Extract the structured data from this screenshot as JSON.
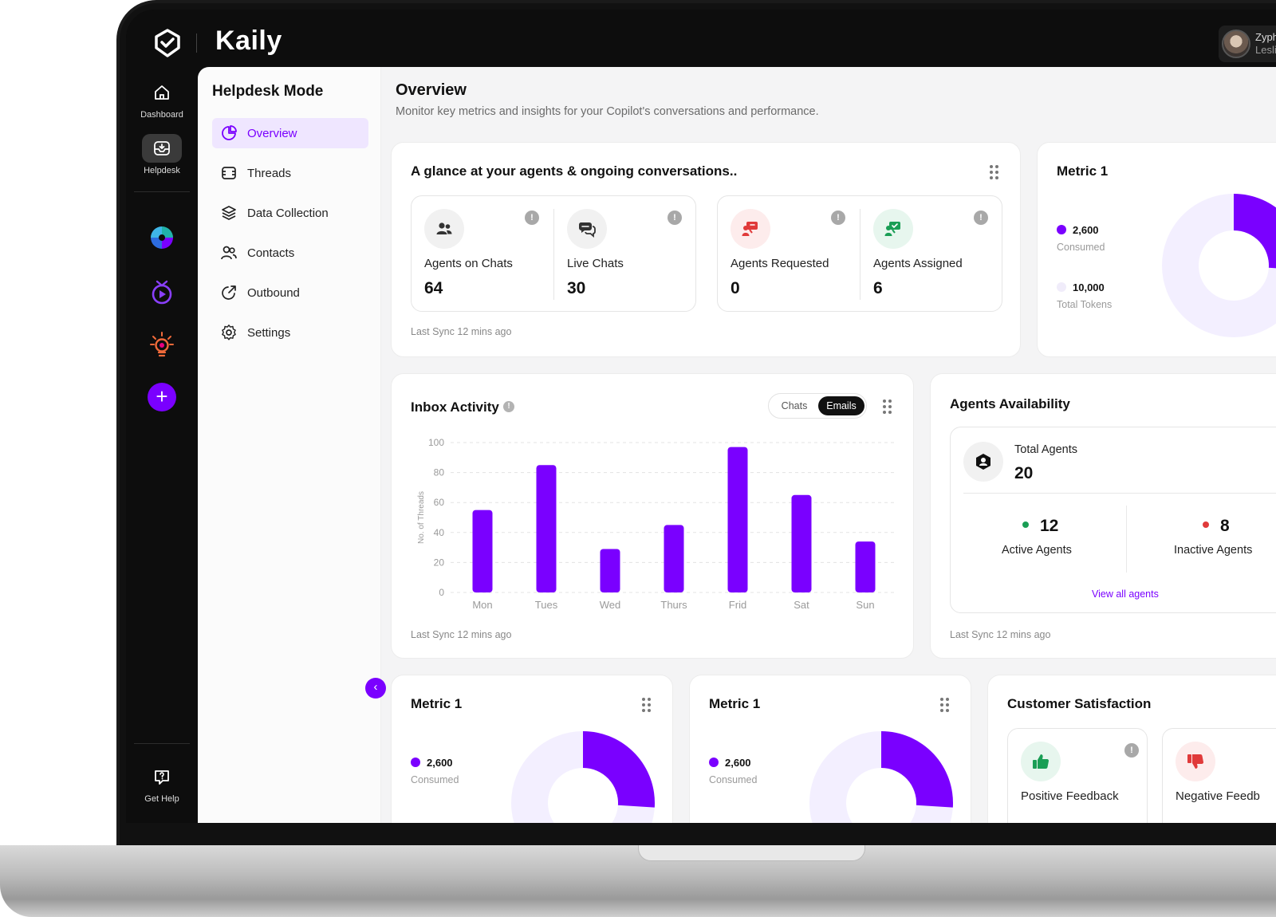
{
  "app": {
    "name": "Kaily",
    "user_name": "Zyphe",
    "user_sub": "Leslie"
  },
  "rail": {
    "dashboard": "Dashboard",
    "helpdesk": "Helpdesk",
    "get_help": "Get Help"
  },
  "sidenav": {
    "title": "Helpdesk Mode",
    "items": [
      {
        "label": "Overview",
        "icon": "pie-chart-icon"
      },
      {
        "label": "Threads",
        "icon": "threads-icon"
      },
      {
        "label": "Data Collection",
        "icon": "layers-icon"
      },
      {
        "label": "Contacts",
        "icon": "contacts-icon"
      },
      {
        "label": "Outbound",
        "icon": "outbound-icon"
      },
      {
        "label": "Settings",
        "icon": "gear-icon"
      }
    ]
  },
  "page": {
    "title": "Overview",
    "subtitle": "Monitor key metrics and insights for your Copilot's conversations and performance."
  },
  "glance": {
    "title": "A glance at your agents & ongoing conversations..",
    "stats": [
      {
        "label": "Agents on Chats",
        "value": "64",
        "icon": "people-icon",
        "color": "#333333"
      },
      {
        "label": "Live Chats",
        "value": "30",
        "icon": "chat-bubbles-icon",
        "color": "#333333"
      },
      {
        "label": "Agents Requested",
        "value": "0",
        "icon": "agent-request-icon",
        "color": "#e03a3a"
      },
      {
        "label": "Agents Assigned",
        "value": "6",
        "icon": "agent-assigned-icon",
        "color": "#1a9e55"
      }
    ],
    "sync": "Last Sync 12 mins ago"
  },
  "metric_top": {
    "title": "Metric 1",
    "consumed_value": "2,600",
    "consumed_label": "Consumed",
    "total_value": "10,000",
    "total_label": "Total Tokens",
    "consumed_fraction": 0.26
  },
  "inbox": {
    "title": "Inbox Activity",
    "toggle": {
      "chats": "Chats",
      "emails": "Emails",
      "active": "Emails"
    },
    "sync": "Last Sync 12 mins ago"
  },
  "chart_data": {
    "type": "bar",
    "title": "",
    "xlabel": "",
    "ylabel": "No. of Threads",
    "categories": [
      "Mon",
      "Tues",
      "Wed",
      "Thurs",
      "Frid",
      "Sat",
      "Sun"
    ],
    "values": [
      55,
      85,
      29,
      45,
      97,
      65,
      34
    ],
    "yticks": [
      "0",
      "20",
      "40",
      "60",
      "80",
      "100"
    ],
    "ylim": [
      0,
      100
    ],
    "grid": true,
    "color": "#7a00ff"
  },
  "availability": {
    "title": "Agents Availability",
    "total_label": "Total Agents",
    "total_value": "20",
    "active_value": "12",
    "active_label": "Active Agents",
    "inactive_value": "8",
    "inactive_label": "Inactive Agents",
    "view_all": "View all agents",
    "sync": "Last Sync 12 mins ago"
  },
  "metric_bottom": [
    {
      "title": "Metric 1",
      "consumed_value": "2,600",
      "consumed_label": "Consumed",
      "consumed_fraction": 0.26
    },
    {
      "title": "Metric 1",
      "consumed_value": "2,600",
      "consumed_label": "Consumed",
      "consumed_fraction": 0.26
    }
  ],
  "satisfaction": {
    "title": "Customer Satisfaction",
    "positive_label": "Positive Feedback",
    "negative_label": "Negative Feedb"
  },
  "colors": {
    "accent": "#7a00ff",
    "accent_light": "#efe6ff",
    "green": "#1a9e55",
    "red": "#e03a3a"
  }
}
